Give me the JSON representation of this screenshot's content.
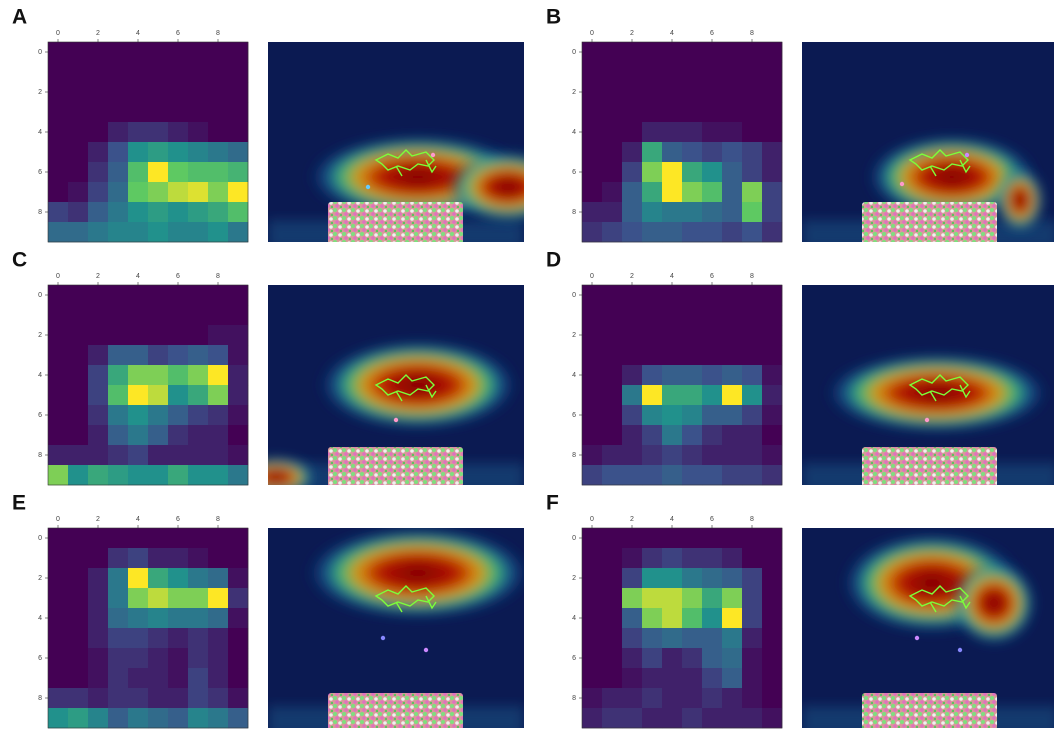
{
  "chart_data": [
    {
      "type": "heatmap",
      "label": "A",
      "colormap": "viridis",
      "xlim": [
        -0.5,
        9.5
      ],
      "ylim": [
        9.5,
        -0.5
      ],
      "xticks": [
        0,
        2,
        4,
        6,
        8
      ],
      "yticks": [
        0,
        2,
        4,
        6,
        8
      ],
      "values": [
        [
          0,
          0,
          0,
          0,
          0,
          0,
          0,
          0,
          0,
          0
        ],
        [
          0,
          0,
          0,
          0,
          0,
          0,
          0,
          0,
          0,
          0
        ],
        [
          0,
          0,
          0,
          0,
          0,
          0,
          0,
          0,
          0,
          0
        ],
        [
          0,
          0,
          0,
          0,
          0,
          0,
          0,
          0,
          0,
          0
        ],
        [
          0,
          0,
          0,
          0.1,
          0.15,
          0.15,
          0.1,
          0.05,
          0,
          0
        ],
        [
          0,
          0,
          0.1,
          0.25,
          0.5,
          0.55,
          0.5,
          0.45,
          0.4,
          0.35
        ],
        [
          0,
          0,
          0.15,
          0.3,
          0.7,
          1,
          0.75,
          0.7,
          0.7,
          0.65
        ],
        [
          0,
          0.05,
          0.2,
          0.35,
          0.75,
          0.8,
          0.9,
          0.95,
          0.8,
          1
        ],
        [
          0.2,
          0.15,
          0.3,
          0.4,
          0.5,
          0.55,
          0.5,
          0.55,
          0.6,
          0.7
        ],
        [
          0.35,
          0.35,
          0.4,
          0.45,
          0.45,
          0.5,
          0.45,
          0.45,
          0.5,
          0.4
        ]
      ]
    },
    {
      "type": "heatmap",
      "label": "B",
      "colormap": "viridis",
      "xlim": [
        -0.5,
        9.5
      ],
      "ylim": [
        9.5,
        -0.5
      ],
      "xticks": [
        0,
        2,
        4,
        6,
        8
      ],
      "yticks": [
        0,
        2,
        4,
        6,
        8
      ],
      "values": [
        [
          0,
          0,
          0,
          0,
          0,
          0,
          0,
          0,
          0,
          0
        ],
        [
          0,
          0,
          0,
          0,
          0,
          0,
          0,
          0,
          0,
          0
        ],
        [
          0,
          0,
          0,
          0,
          0,
          0,
          0,
          0,
          0,
          0
        ],
        [
          0,
          0,
          0,
          0,
          0,
          0,
          0,
          0,
          0,
          0
        ],
        [
          0,
          0,
          0,
          0.1,
          0.1,
          0.1,
          0.05,
          0.05,
          0,
          0
        ],
        [
          0,
          0,
          0.1,
          0.6,
          0.3,
          0.25,
          0.2,
          0.25,
          0.2,
          0.1
        ],
        [
          0,
          0,
          0.2,
          0.8,
          1,
          0.6,
          0.5,
          0.3,
          0.2,
          0.1
        ],
        [
          0,
          0.05,
          0.3,
          0.6,
          1,
          0.8,
          0.7,
          0.3,
          0.8,
          0.2
        ],
        [
          0.1,
          0.1,
          0.3,
          0.45,
          0.4,
          0.4,
          0.35,
          0.3,
          0.75,
          0.2
        ],
        [
          0.15,
          0.2,
          0.25,
          0.3,
          0.3,
          0.25,
          0.25,
          0.2,
          0.25,
          0.15
        ]
      ]
    },
    {
      "type": "heatmap",
      "label": "C",
      "colormap": "viridis",
      "xlim": [
        -0.5,
        9.5
      ],
      "ylim": [
        9.5,
        -0.5
      ],
      "xticks": [
        0,
        2,
        4,
        6,
        8
      ],
      "yticks": [
        0,
        2,
        4,
        6,
        8
      ],
      "values": [
        [
          0,
          0,
          0,
          0,
          0,
          0,
          0,
          0,
          0,
          0
        ],
        [
          0,
          0,
          0,
          0,
          0,
          0,
          0,
          0,
          0,
          0
        ],
        [
          0,
          0,
          0,
          0,
          0,
          0,
          0,
          0,
          0.05,
          0.05
        ],
        [
          0,
          0,
          0.1,
          0.3,
          0.3,
          0.2,
          0.25,
          0.3,
          0.25,
          0.05
        ],
        [
          0,
          0,
          0.2,
          0.6,
          0.8,
          0.8,
          0.7,
          0.8,
          1,
          0.1
        ],
        [
          0,
          0,
          0.2,
          0.7,
          1,
          0.9,
          0.5,
          0.6,
          0.8,
          0.1
        ],
        [
          0,
          0,
          0.15,
          0.4,
          0.5,
          0.4,
          0.3,
          0.2,
          0.15,
          0.05
        ],
        [
          0,
          0,
          0.1,
          0.3,
          0.4,
          0.3,
          0.15,
          0.1,
          0.1,
          0
        ],
        [
          0.1,
          0.1,
          0.1,
          0.15,
          0.2,
          0.1,
          0.1,
          0.1,
          0.1,
          0.05
        ],
        [
          0.8,
          0.5,
          0.6,
          0.55,
          0.5,
          0.5,
          0.6,
          0.5,
          0.5,
          0.4
        ]
      ]
    },
    {
      "type": "heatmap",
      "label": "D",
      "colormap": "viridis",
      "xlim": [
        -0.5,
        9.5
      ],
      "ylim": [
        9.5,
        -0.5
      ],
      "xticks": [
        0,
        2,
        4,
        6,
        8
      ],
      "yticks": [
        0,
        2,
        4,
        6,
        8
      ],
      "values": [
        [
          0,
          0,
          0,
          0,
          0,
          0,
          0,
          0,
          0,
          0
        ],
        [
          0,
          0,
          0,
          0,
          0,
          0,
          0,
          0,
          0,
          0
        ],
        [
          0,
          0,
          0,
          0,
          0,
          0,
          0,
          0,
          0,
          0
        ],
        [
          0,
          0,
          0,
          0,
          0,
          0,
          0,
          0,
          0,
          0
        ],
        [
          0,
          0,
          0.1,
          0.25,
          0.3,
          0.3,
          0.25,
          0.3,
          0.25,
          0.05
        ],
        [
          0,
          0,
          0.4,
          1,
          0.6,
          0.6,
          0.5,
          1,
          0.5,
          0.1
        ],
        [
          0,
          0,
          0.2,
          0.45,
          0.5,
          0.45,
          0.3,
          0.3,
          0.2,
          0.05
        ],
        [
          0,
          0,
          0.1,
          0.2,
          0.4,
          0.25,
          0.15,
          0.1,
          0.1,
          0
        ],
        [
          0.05,
          0.1,
          0.1,
          0.15,
          0.2,
          0.15,
          0.1,
          0.1,
          0.1,
          0.05
        ],
        [
          0.2,
          0.25,
          0.25,
          0.25,
          0.3,
          0.25,
          0.25,
          0.2,
          0.2,
          0.15
        ]
      ]
    },
    {
      "type": "heatmap",
      "label": "E",
      "colormap": "viridis",
      "xlim": [
        -0.5,
        9.5
      ],
      "ylim": [
        9.5,
        -0.5
      ],
      "xticks": [
        0,
        2,
        4,
        6,
        8
      ],
      "yticks": [
        0,
        2,
        4,
        6,
        8
      ],
      "values": [
        [
          0,
          0,
          0,
          0,
          0,
          0,
          0,
          0,
          0,
          0
        ],
        [
          0,
          0,
          0,
          0.15,
          0.2,
          0.1,
          0.1,
          0.05,
          0,
          0
        ],
        [
          0,
          0,
          0.1,
          0.4,
          1,
          0.6,
          0.5,
          0.4,
          0.35,
          0.05
        ],
        [
          0,
          0,
          0.1,
          0.4,
          0.8,
          0.9,
          0.8,
          0.8,
          1,
          0.15
        ],
        [
          0,
          0,
          0.1,
          0.35,
          0.4,
          0.45,
          0.4,
          0.4,
          0.35,
          0.05
        ],
        [
          0,
          0,
          0.1,
          0.2,
          0.2,
          0.15,
          0.1,
          0.15,
          0.1,
          0
        ],
        [
          0,
          0,
          0.05,
          0.15,
          0.15,
          0.1,
          0.05,
          0.15,
          0.1,
          0
        ],
        [
          0,
          0,
          0.05,
          0.15,
          0.1,
          0.1,
          0.05,
          0.2,
          0.1,
          0
        ],
        [
          0.15,
          0.15,
          0.1,
          0.15,
          0.15,
          0.1,
          0.1,
          0.2,
          0.15,
          0.05
        ],
        [
          0.5,
          0.55,
          0.45,
          0.3,
          0.4,
          0.35,
          0.3,
          0.45,
          0.4,
          0.3
        ]
      ]
    },
    {
      "type": "heatmap",
      "label": "F",
      "colormap": "viridis",
      "xlim": [
        -0.5,
        9.5
      ],
      "ylim": [
        9.5,
        -0.5
      ],
      "xticks": [
        0,
        2,
        4,
        6,
        8
      ],
      "yticks": [
        0,
        2,
        4,
        6,
        8
      ],
      "values": [
        [
          0,
          0,
          0,
          0,
          0,
          0,
          0,
          0,
          0,
          0
        ],
        [
          0,
          0,
          0.05,
          0.15,
          0.2,
          0.15,
          0.15,
          0.1,
          0,
          0
        ],
        [
          0,
          0,
          0.2,
          0.5,
          0.5,
          0.4,
          0.35,
          0.3,
          0.2,
          0
        ],
        [
          0,
          0,
          0.8,
          0.9,
          0.9,
          0.8,
          0.6,
          0.8,
          0.2,
          0
        ],
        [
          0,
          0,
          0.3,
          0.8,
          0.9,
          0.7,
          0.5,
          1,
          0.2,
          0
        ],
        [
          0,
          0,
          0.2,
          0.3,
          0.35,
          0.3,
          0.3,
          0.4,
          0.1,
          0
        ],
        [
          0,
          0,
          0.1,
          0.2,
          0.1,
          0.15,
          0.3,
          0.35,
          0.05,
          0
        ],
        [
          0,
          0,
          0.05,
          0.1,
          0.1,
          0.1,
          0.2,
          0.3,
          0.05,
          0
        ],
        [
          0.05,
          0.1,
          0.1,
          0.15,
          0.1,
          0.1,
          0.15,
          0.1,
          0.05,
          0
        ],
        [
          0.1,
          0.15,
          0.15,
          0.1,
          0.1,
          0.15,
          0.1,
          0.1,
          0.1,
          0.05
        ]
      ]
    }
  ]
}
